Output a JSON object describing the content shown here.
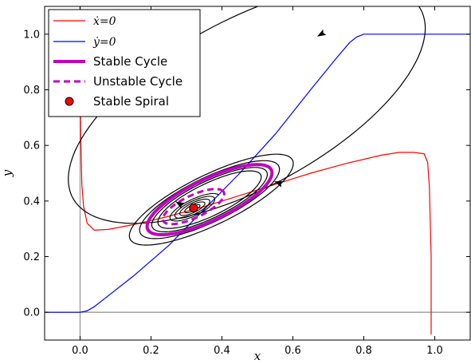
{
  "chart_data": {
    "type": "line",
    "title": "",
    "xlabel": "x",
    "ylabel": "y",
    "xlim": [
      -0.1,
      1.1
    ],
    "ylim": [
      -0.1,
      1.1
    ],
    "xticks": [
      "0.0",
      "0.2",
      "0.4",
      "0.6",
      "0.8",
      "1.0"
    ],
    "yticks": [
      "0.0",
      "0.2",
      "0.4",
      "0.6",
      "0.8",
      "1.0"
    ],
    "grid": false,
    "legend_position": "top-left",
    "legend": [
      {
        "label": "ẋ=0",
        "style": "line",
        "color": "#ff0000"
      },
      {
        "label": "ẏ=0",
        "style": "line",
        "color": "#0000ff"
      },
      {
        "label": "Stable Cycle",
        "style": "thick-line",
        "color": "#bf00bf"
      },
      {
        "label": "Unstable Cycle",
        "style": "dashed-line",
        "color": "#bf00bf"
      },
      {
        "label": "Stable Spiral",
        "style": "marker",
        "color": "#ff0000"
      }
    ],
    "series": [
      {
        "name": "ẋ=0",
        "color": "#ff0000",
        "x": [
          0.0,
          0.0,
          0.002,
          0.005,
          0.01,
          0.02,
          0.04,
          0.08,
          0.15,
          0.25,
          0.35,
          0.45,
          0.55,
          0.65,
          0.75,
          0.85,
          0.9,
          0.94,
          0.97,
          0.98,
          0.985,
          0.99,
          0.99
        ],
        "y": [
          1.1,
          0.92,
          0.62,
          0.46,
          0.38,
          0.32,
          0.295,
          0.298,
          0.315,
          0.345,
          0.38,
          0.42,
          0.46,
          0.5,
          0.535,
          0.565,
          0.575,
          0.575,
          0.57,
          0.54,
          0.45,
          0.2,
          -0.08
        ]
      },
      {
        "name": "ẏ=0",
        "color": "#0000ff",
        "x": [
          -0.1,
          0.0,
          0.02,
          0.04,
          0.08,
          0.15,
          0.25,
          0.35,
          0.45,
          0.55,
          0.65,
          0.72,
          0.76,
          0.78,
          0.8,
          1.1
        ],
        "y": [
          0.0,
          0.0,
          0.005,
          0.02,
          0.06,
          0.13,
          0.24,
          0.37,
          0.5,
          0.64,
          0.8,
          0.91,
          0.97,
          0.99,
          1.0,
          1.0
        ]
      },
      {
        "name": "Stable Cycle",
        "color": "#bf00bf",
        "center": [
          0.365,
          0.405
        ],
        "rx": 0.205,
        "ry": 0.07,
        "angle": 33
      },
      {
        "name": "Unstable Cycle",
        "color": "#bf00bf",
        "center": [
          0.32,
          0.38
        ],
        "rx": 0.1,
        "ry": 0.038,
        "angle": 33
      },
      {
        "name": "Stable Spiral",
        "color": "#ff0000",
        "x": [
          0.32
        ],
        "y": [
          0.375
        ]
      }
    ],
    "trajectories": {
      "outer_loop": {
        "center": [
          0.47,
          0.75
        ],
        "rx": 0.6,
        "ry": 0.28,
        "angle": 38,
        "arrow_at": [
          0.68,
          1.0
        ]
      },
      "middle_cycle": {
        "center": [
          0.37,
          0.405
        ],
        "rx": 0.27,
        "ry": 0.085,
        "angle": 33,
        "arrow_at": [
          0.56,
          0.465
        ]
      },
      "inner_cycles": [
        {
          "center": [
            0.365,
            0.405
          ],
          "rx": 0.23,
          "ry": 0.075,
          "angle": 33
        },
        {
          "center": [
            0.365,
            0.405
          ],
          "rx": 0.19,
          "ry": 0.062,
          "angle": 33
        },
        {
          "center": [
            0.365,
            0.405
          ],
          "rx": 0.17,
          "ry": 0.055,
          "angle": 33
        }
      ],
      "spiral": {
        "center": [
          0.32,
          0.375
        ],
        "turns": 5,
        "rx_max": 0.085,
        "ry_max": 0.03,
        "angle": 33,
        "arrow_at": [
          0.28,
          0.39
        ]
      }
    }
  }
}
